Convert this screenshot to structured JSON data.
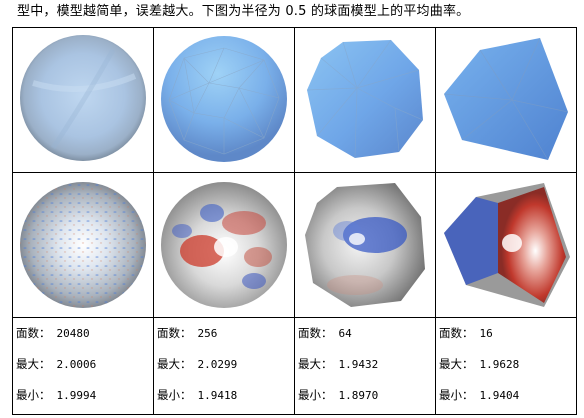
{
  "intro_text": "型中，模型越简单，误差越大。下图为半径为 0.5 的球面模型上的平均曲率。",
  "columns": [
    {
      "faces_label": "面数：",
      "faces": "20480",
      "max_label": "最大：",
      "max": "2.0006",
      "min_label": "最小：",
      "min": "1.9994"
    },
    {
      "faces_label": "面数：",
      "faces": "256",
      "max_label": "最大：",
      "max": "2.0299",
      "min_label": "最小：",
      "min": "1.9418"
    },
    {
      "faces_label": "面数：",
      "faces": "64",
      "max_label": "最大：",
      "max": "1.9432",
      "min_label": "最小：",
      "min": "1.8970"
    },
    {
      "faces_label": "面数：",
      "faces": "16",
      "max_label": "最大：",
      "max": "1.9628",
      "min_label": "最小：",
      "min": "1.9404"
    }
  ]
}
